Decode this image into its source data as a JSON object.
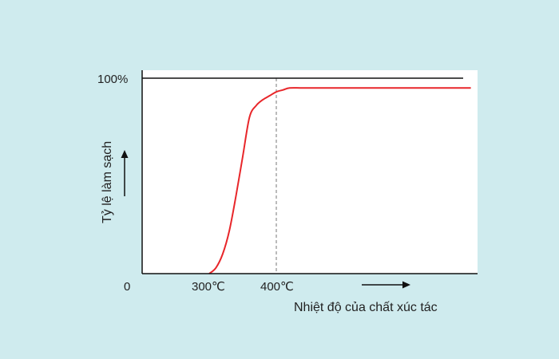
{
  "chart_data": {
    "type": "line",
    "xlabel": "Nhiệt độ của chất xúc tác",
    "ylabel": "Tỷ lệ làm sạch",
    "x_tick_labels": [
      "300℃",
      "400℃"
    ],
    "y_tick_labels": [
      "0",
      "100%"
    ],
    "xlim": [
      200,
      700
    ],
    "ylim": [
      0,
      100
    ],
    "reference_line_x": 400,
    "series": [
      {
        "color": "#e8262a",
        "x": [
          300,
          310,
          320,
          330,
          340,
          350,
          360,
          370,
          380,
          390,
          400,
          410,
          420,
          440,
          480,
          560,
          690
        ],
        "y": [
          0,
          3,
          10,
          22,
          40,
          60,
          80,
          86,
          89,
          91,
          93,
          94,
          95,
          95,
          95,
          95,
          95
        ]
      }
    ],
    "grid": false,
    "legend": "none"
  },
  "colors": {
    "background": "#cfebee",
    "plot_background": "#ffffff",
    "axis": "#111111",
    "reference_line": "#777777"
  }
}
